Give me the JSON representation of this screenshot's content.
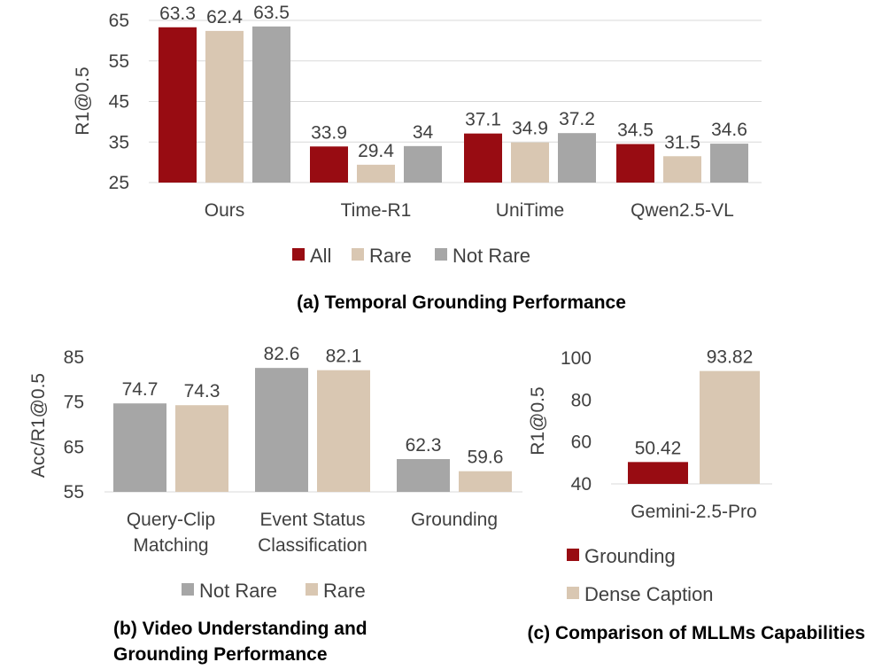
{
  "colors": {
    "All": "#980c12",
    "Not Rare": "#a6a6a6",
    "Rare": "#d9c7b2",
    "Grounding": "#980c12",
    "Dense Caption": "#d9c7b2"
  },
  "chart_data": [
    {
      "id": "a",
      "type": "bar",
      "caption": "(a) Temporal Grounding Performance",
      "ylabel": "R1@0.5",
      "ylim": [
        25,
        65
      ],
      "yticks": [
        25,
        35,
        45,
        55,
        65
      ],
      "categories": [
        "Ours",
        "Time-R1",
        "UniTime",
        "Qwen2.5-VL"
      ],
      "series": [
        {
          "name": "All",
          "values": [
            63.3,
            33.9,
            37.1,
            34.5
          ],
          "labels": [
            "63.3",
            "33.9",
            "37.1",
            "34.5"
          ]
        },
        {
          "name": "Rare",
          "values": [
            62.4,
            29.4,
            34.9,
            31.5
          ],
          "labels": [
            "62.4",
            "29.4",
            "34.9",
            "31.5"
          ]
        },
        {
          "name": "Not Rare",
          "values": [
            63.5,
            34,
            37.2,
            34.6
          ],
          "labels": [
            "63.5",
            "34",
            "37.2",
            "34.6"
          ]
        }
      ],
      "grid": true,
      "legend": "bottom"
    },
    {
      "id": "b",
      "type": "bar",
      "caption": [
        "(b) Video Understanding and",
        "Grounding Performance"
      ],
      "ylabel": "Acc/R1@0.5",
      "ylim": [
        55,
        85
      ],
      "yticks": [
        55,
        65,
        75,
        85
      ],
      "categories": [
        [
          "Query-Clip",
          "Matching"
        ],
        [
          "Event Status",
          "Classification"
        ],
        [
          "Grounding"
        ]
      ],
      "series": [
        {
          "name": "Not Rare",
          "values": [
            74.7,
            82.6,
            62.3
          ],
          "labels": [
            "74.7",
            "82.6",
            "62.3"
          ]
        },
        {
          "name": "Rare",
          "values": [
            74.3,
            82.1,
            59.6
          ],
          "labels": [
            "74.3",
            "82.1",
            "59.6"
          ]
        }
      ],
      "grid": false,
      "legend": "bottom"
    },
    {
      "id": "c",
      "type": "bar",
      "caption": "(c) Comparison of MLLMs Capabilities",
      "ylabel": "R1@0.5",
      "ylim": [
        40,
        100
      ],
      "yticks": [
        40,
        60,
        80,
        100
      ],
      "categories": [
        "Gemini-2.5-Pro"
      ],
      "series": [
        {
          "name": "Grounding",
          "values": [
            50.42
          ],
          "labels": [
            "50.42"
          ]
        },
        {
          "name": "Dense Caption",
          "values": [
            93.82
          ],
          "labels": [
            "93.82"
          ]
        }
      ],
      "grid": false,
      "legend": "bottom"
    }
  ]
}
